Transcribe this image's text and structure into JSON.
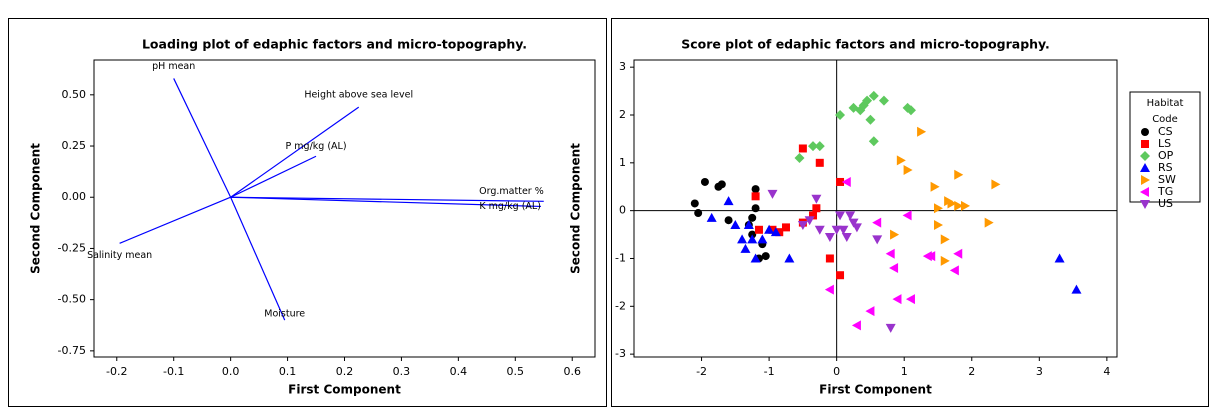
{
  "chart_data": [
    {
      "type": "loading",
      "title": "Loading plot of edaphic factors and micro-topography.",
      "x_label": "First Component",
      "y_label": "Second Component",
      "color": "#0000ff",
      "xlim": [
        -0.24,
        0.64
      ],
      "ylim": [
        -0.78,
        0.67
      ],
      "xticks": [
        -0.2,
        -0.1,
        {
          "value": 0,
          "label": "0.0"
        },
        0.1,
        0.2,
        0.3,
        0.4,
        0.5,
        0.6
      ],
      "yticks": [
        {
          "value": -0.75,
          "label": "-0.75"
        },
        {
          "value": -0.5,
          "label": "-0.50"
        },
        {
          "value": -0.25,
          "label": "-0.25"
        },
        {
          "value": 0,
          "label": "0.00"
        },
        {
          "value": 0.25,
          "label": "0.25"
        },
        {
          "value": 0.5,
          "label": "0.50"
        }
      ],
      "series": [
        {
          "name": "pH mean",
          "x": -0.1,
          "y": 0.58
        },
        {
          "name": "Height above sea level",
          "x": 0.225,
          "y": 0.44
        },
        {
          "name": "P mg/kg (AL)",
          "x": 0.15,
          "y": 0.2
        },
        {
          "name": "Org.matter %",
          "x": 0.55,
          "y": -0.02
        },
        {
          "name": "K mg/kg (AL)",
          "x": 0.545,
          "y": -0.045
        },
        {
          "name": "Salinity mean",
          "x": -0.195,
          "y": -0.225
        },
        {
          "name": "Moisture",
          "x": 0.095,
          "y": -0.6
        }
      ]
    },
    {
      "type": "scatter",
      "title": "Score plot of edaphic factors and micro-topography.",
      "x_label": "First Component",
      "y_label": "Second Component",
      "legend_title": "Habitat Code",
      "reference_lines": true,
      "xlim": [
        -3.0,
        4.15
      ],
      "ylim": [
        -3.06,
        3.15
      ],
      "xticks": [
        -2,
        -1,
        0,
        1,
        2,
        3,
        4
      ],
      "yticks": [
        -3,
        -2,
        -1,
        0,
        1,
        2,
        3
      ],
      "series": [
        {
          "name": "CS",
          "color": "#000000",
          "marker": "circle",
          "x": [
            -2.1,
            -2.05,
            -1.95,
            -1.75,
            -1.7,
            -1.6,
            -1.2,
            -1.2,
            -1.25,
            -1.3,
            -1.25,
            -1.15,
            -1.05,
            -1.1
          ],
          "values": [
            0.15,
            -0.05,
            0.6,
            0.5,
            0.55,
            -0.2,
            0.45,
            0.05,
            -0.15,
            -0.3,
            -0.5,
            -1.0,
            -0.95,
            -0.7
          ]
        },
        {
          "name": "LS",
          "color": "#ff0000",
          "marker": "square",
          "x": [
            -0.5,
            -0.25,
            -1.2,
            -1.15,
            -0.95,
            -0.85,
            -0.75,
            -0.5,
            -0.3,
            -0.35,
            -0.1,
            0.05,
            0.05
          ],
          "values": [
            1.3,
            1.0,
            0.3,
            -0.4,
            -0.4,
            -0.45,
            -0.35,
            -0.25,
            0.05,
            -0.1,
            -1.0,
            -1.35,
            0.6
          ]
        },
        {
          "name": "OP",
          "color": "#5ec95e",
          "marker": "diamond",
          "x": [
            -0.55,
            -0.35,
            -0.25,
            0.05,
            0.25,
            0.35,
            0.4,
            0.45,
            0.55,
            0.5,
            0.55,
            0.7,
            1.05,
            1.1
          ],
          "values": [
            1.1,
            1.35,
            1.35,
            2.0,
            2.15,
            2.1,
            2.2,
            2.3,
            2.4,
            1.9,
            1.45,
            2.3,
            2.15,
            2.1
          ]
        },
        {
          "name": "RS",
          "color": "#0000ff",
          "marker": "tri-up",
          "x": [
            -1.85,
            -1.6,
            -1.5,
            -1.4,
            -1.35,
            -1.3,
            -1.25,
            -1.2,
            -1.1,
            -1.0,
            -0.9,
            -0.7,
            3.3,
            3.55
          ],
          "values": [
            -0.15,
            0.2,
            -0.3,
            -0.6,
            -0.8,
            -0.3,
            -0.6,
            -1.0,
            -0.6,
            -0.4,
            -0.45,
            -1.0,
            -1.0,
            -1.65
          ]
        },
        {
          "name": "SW",
          "color": "#ff9900",
          "marker": "tri-right",
          "x": [
            1.25,
            0.95,
            1.05,
            1.45,
            1.5,
            1.65,
            1.7,
            1.8,
            1.9,
            1.8,
            2.35,
            2.25,
            1.6,
            1.6,
            0.85,
            1.5
          ],
          "values": [
            1.65,
            1.05,
            0.85,
            0.5,
            0.05,
            0.2,
            0.15,
            0.1,
            0.1,
            0.75,
            0.55,
            -0.25,
            -0.6,
            -1.05,
            -0.5,
            -0.3
          ]
        },
        {
          "name": "TG",
          "color": "#ff00ff",
          "marker": "tri-left",
          "x": [
            -0.1,
            0.3,
            0.5,
            0.9,
            1.1,
            0.85,
            0.8,
            1.35,
            1.4,
            1.8,
            1.75,
            0.6,
            1.05,
            0.15
          ],
          "values": [
            -1.65,
            -2.4,
            -2.1,
            -1.85,
            -1.85,
            -1.2,
            -0.9,
            -0.95,
            -0.95,
            -0.9,
            -1.25,
            -0.25,
            -0.1,
            0.6
          ]
        },
        {
          "name": "US",
          "color": "#9933cc",
          "marker": "tri-down",
          "x": [
            -0.95,
            -0.5,
            -0.4,
            -0.3,
            -0.25,
            -0.1,
            0.0,
            0.1,
            0.15,
            0.2,
            0.25,
            0.3,
            0.05,
            0.8,
            0.6
          ],
          "values": [
            0.35,
            -0.3,
            -0.2,
            0.25,
            -0.4,
            -0.55,
            -0.4,
            -0.4,
            -0.55,
            -0.1,
            -0.25,
            -0.35,
            -0.1,
            -2.45,
            -0.6
          ]
        }
      ]
    }
  ]
}
